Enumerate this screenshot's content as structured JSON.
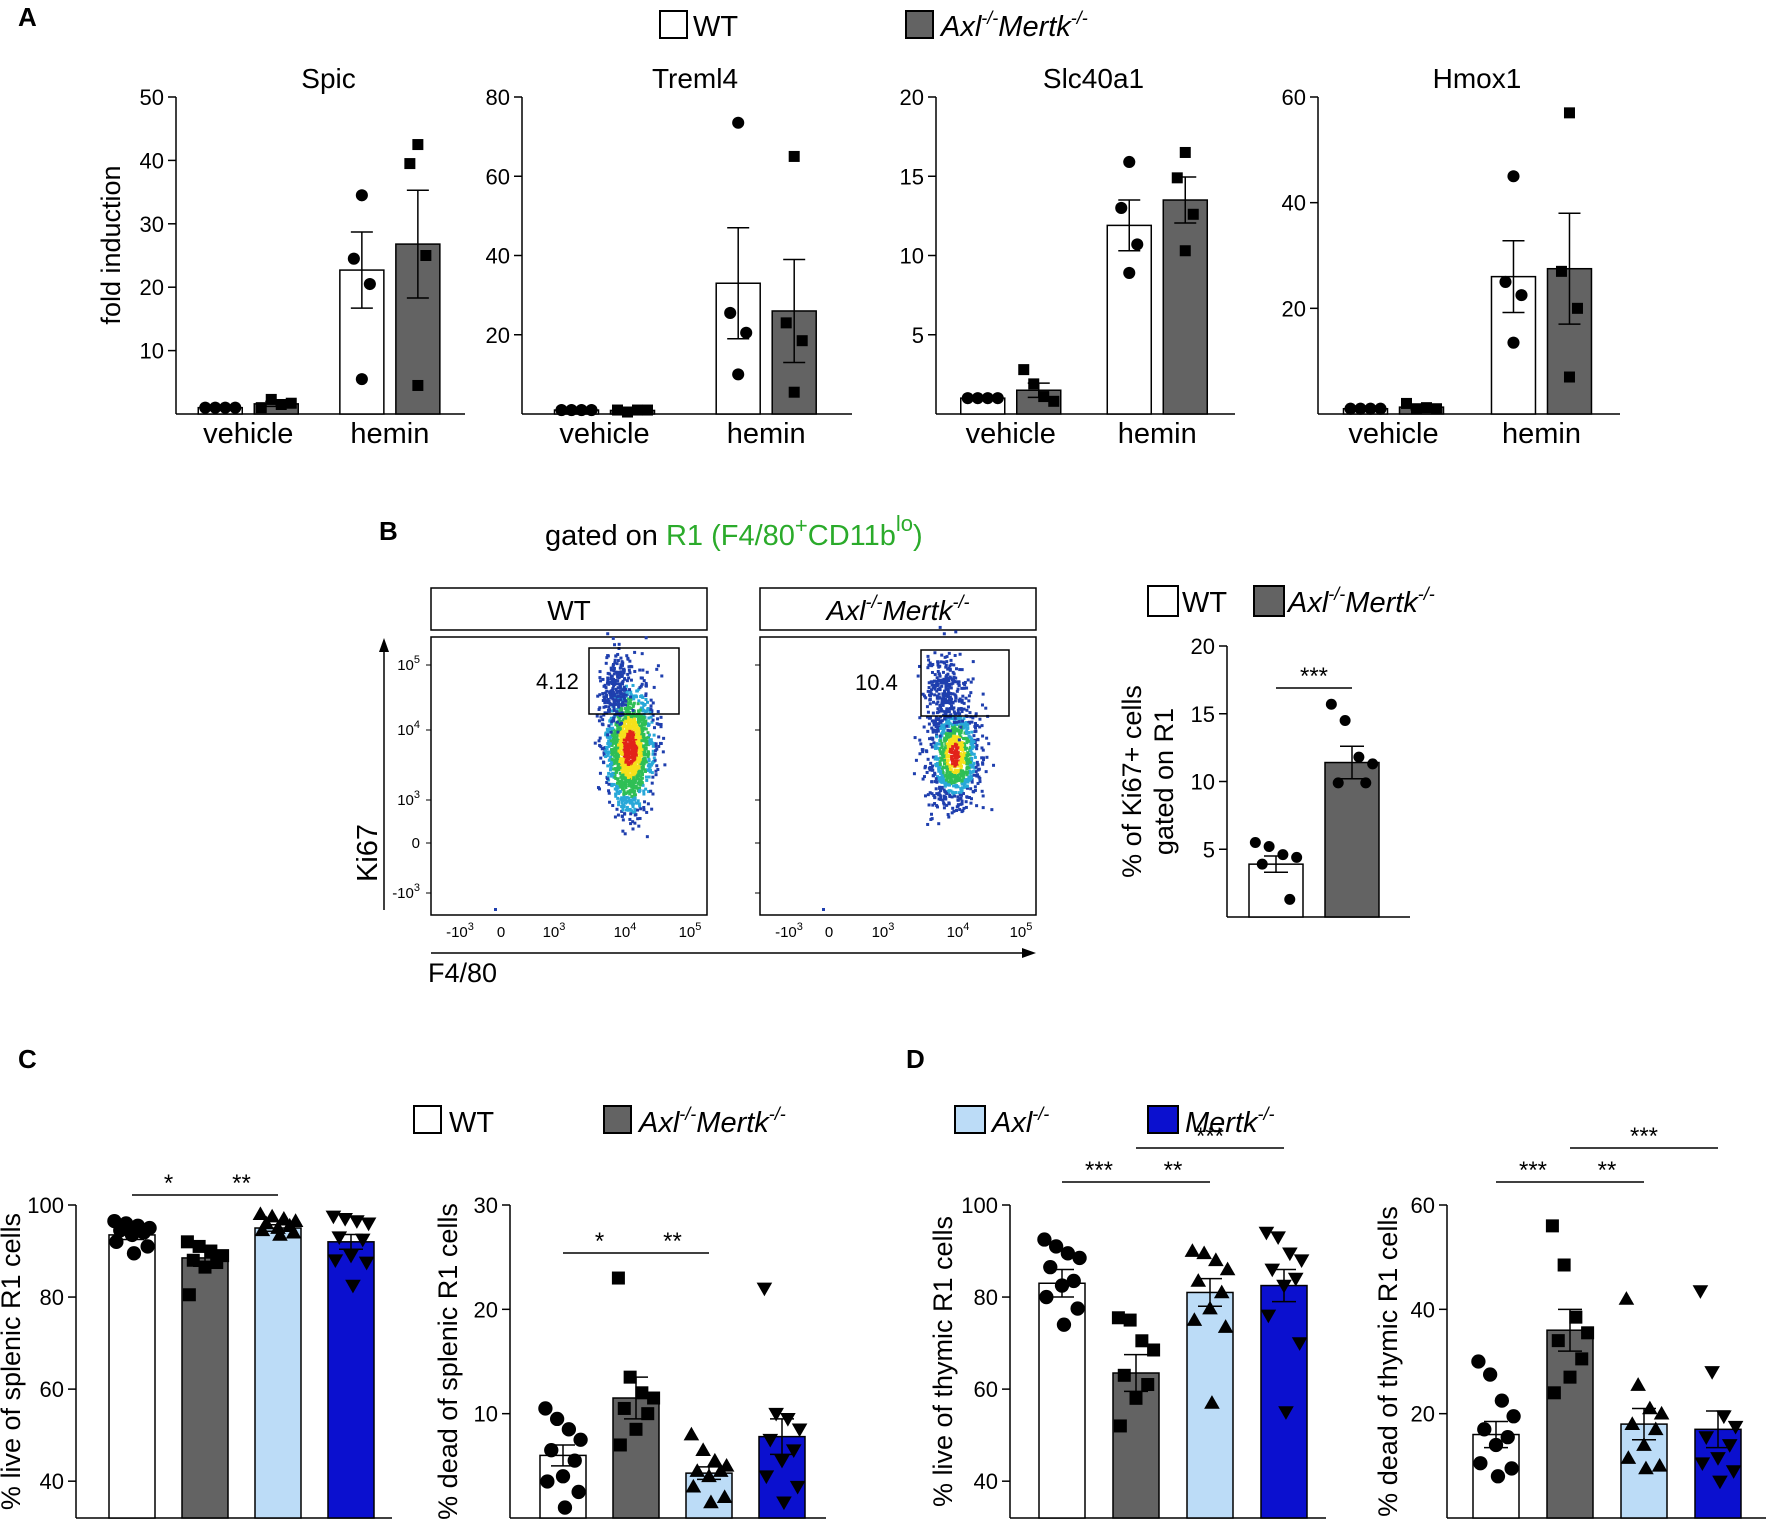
{
  "colors": {
    "wt": "#ffffff",
    "dko": "#636363",
    "axl": "#bcdcf7",
    "mertk": "#0b10cf",
    "gate_label": "#2bab2b",
    "axis": "#000000"
  },
  "panel_labels": {
    "a": "A",
    "b": "B",
    "c": "C",
    "d": "D"
  },
  "legend_a": {
    "wt": "WT",
    "dko_axl": "Axl",
    "dko_axl_sup": "-/-",
    "dko_mertk": "Mertk",
    "dko_mertk_sup": "-/-"
  },
  "legend_b": {
    "wt": "WT",
    "dko_axl": "Axl",
    "dko_axl_sup": "-/-",
    "dko_mertk": "Mertk",
    "dko_mertk_sup": "-/-"
  },
  "legend_cd": {
    "wt": "WT",
    "dko_axl": "Axl",
    "dko_axl_sup": "-/-",
    "dko_mertk": "Mertk",
    "dko_mertk_sup": "-/-",
    "axl": "Axl",
    "axl_sup": "-/-",
    "mertk": "Mertk",
    "mertk_sup": "-/-"
  },
  "panel_a_ylabel": "fold induction",
  "flow": {
    "gate_prefix": "gated on ",
    "gate_r1": "R1 (F4/80",
    "gate_plus": "+",
    "gate_cd": "CD11b",
    "gate_lo": "lo",
    "gate_close": ")",
    "plots": [
      {
        "title": "WT",
        "gate_pct": "4.12"
      },
      {
        "title_axl": "Axl",
        "title_axl_sup": "-/-",
        "title_mertk": "Mertk",
        "title_mertk_sup": "-/-",
        "gate_pct": "10.4"
      }
    ],
    "y_axis_label": "Ki67",
    "x_axis_label": "F4/80",
    "y_ticks": [
      {
        "base": "10",
        "exp": "5"
      },
      {
        "base": "10",
        "exp": "4"
      },
      {
        "base": "10",
        "exp": "3"
      },
      {
        "base": "0",
        "exp": ""
      },
      {
        "base": "-10",
        "exp": "3"
      }
    ],
    "x_ticks": [
      {
        "base": "-10",
        "exp": "3"
      },
      {
        "base": "0",
        "exp": ""
      },
      {
        "base": "10",
        "exp": "3"
      },
      {
        "base": "10",
        "exp": "4"
      },
      {
        "base": "10",
        "exp": "5"
      }
    ]
  },
  "chart_data": [
    {
      "id": "spic",
      "type": "bar",
      "title": "Spic",
      "ylabel": "fold induction",
      "categories": [
        "vehicle",
        "hemin"
      ],
      "ylim": [
        0,
        50
      ],
      "yticks": [
        10,
        20,
        30,
        40,
        50
      ],
      "series": [
        {
          "name": "WT",
          "values": [
            1,
            22.7
          ],
          "sem": [
            0.1,
            6.0
          ],
          "points": [
            [
              1,
              1,
              1,
              1
            ],
            [
              34.5,
              24.5,
              20.5,
              5.5
            ]
          ]
        },
        {
          "name": "Axl-/-Mertk-/-",
          "values": [
            1.6,
            26.8
          ],
          "sem": [
            0.4,
            8.5
          ],
          "points": [
            [
              1,
              2.3,
              1.5,
              1.7
            ],
            [
              42.5,
              39.5,
              25,
              4.5
            ]
          ]
        }
      ]
    },
    {
      "id": "treml4",
      "type": "bar",
      "title": "Treml4",
      "ylabel": "",
      "categories": [
        "vehicle",
        "hemin"
      ],
      "ylim": [
        0,
        80
      ],
      "yticks": [
        20,
        40,
        60,
        80
      ],
      "series": [
        {
          "name": "WT",
          "values": [
            1,
            33
          ],
          "sem": [
            0.1,
            14
          ],
          "points": [
            [
              1,
              1,
              1,
              1
            ],
            [
              73.5,
              25.5,
              20.5,
              10
            ]
          ]
        },
        {
          "name": "Axl-/-Mertk-/-",
          "values": [
            0.9,
            26
          ],
          "sem": [
            0.2,
            13
          ],
          "points": [
            [
              1,
              0.5,
              1,
              1
            ],
            [
              65,
              23,
              18.5,
              5.5
            ]
          ]
        }
      ]
    },
    {
      "id": "slc40a1",
      "type": "bar",
      "title": "Slc40a1",
      "ylabel": "",
      "categories": [
        "vehicle",
        "hemin"
      ],
      "ylim": [
        0,
        20
      ],
      "yticks": [
        5,
        10,
        15,
        20
      ],
      "series": [
        {
          "name": "WT",
          "values": [
            1,
            11.9
          ],
          "sem": [
            0.05,
            1.6
          ],
          "points": [
            [
              1,
              1,
              1,
              1
            ],
            [
              15.9,
              13,
              10.7,
              8.9
            ]
          ]
        },
        {
          "name": "Axl-/-Mertk-/-",
          "values": [
            1.5,
            13.5
          ],
          "sem": [
            0.45,
            1.45
          ],
          "points": [
            [
              2.8,
              1.9,
              1.1,
              0.8
            ],
            [
              16.5,
              14.9,
              12.6,
              10.3
            ]
          ]
        }
      ]
    },
    {
      "id": "hmox1",
      "type": "bar",
      "title": "Hmox1",
      "ylabel": "",
      "categories": [
        "vehicle",
        "hemin"
      ],
      "ylim": [
        0,
        60
      ],
      "yticks": [
        20,
        40,
        60
      ],
      "series": [
        {
          "name": "WT",
          "values": [
            1,
            26
          ],
          "sem": [
            0.1,
            6.8
          ],
          "points": [
            [
              1,
              1,
              1,
              1
            ],
            [
              45,
              25,
              22.5,
              13.5
            ]
          ]
        },
        {
          "name": "Axl-/-Mertk-/-",
          "values": [
            1.3,
            27.5
          ],
          "sem": [
            0.5,
            10.5
          ],
          "points": [
            [
              2,
              1,
              1.2,
              1
            ],
            [
              57,
              27,
              20,
              7
            ]
          ]
        }
      ]
    },
    {
      "id": "ki67",
      "type": "bar",
      "title": "",
      "ylabel": "% of Ki67+ cells gated on R1",
      "ylabel_lines": [
        "% of Ki67+ cells",
        "gated on R1"
      ],
      "categories": [
        "WT",
        "Axl-/-Mertk-/-"
      ],
      "ylim": [
        0,
        20
      ],
      "yticks": [
        5,
        10,
        15,
        20
      ],
      "values": [
        3.9,
        11.4
      ],
      "sem": [
        0.6,
        1.2
      ],
      "points": [
        [
          5.5,
          5.2,
          4.6,
          4.4,
          3.9,
          1.3
        ],
        [
          15.7,
          14.5,
          11.8,
          11.3,
          9.9,
          9.9
        ]
      ],
      "significance": [
        {
          "from": 0,
          "to": 1,
          "label": "***"
        }
      ]
    },
    {
      "id": "splenic_live",
      "type": "bar",
      "title": "",
      "ylabel": "% live of splenic R1 cells",
      "categories": [
        "WT",
        "Axl-/-Mertk-/-",
        "Axl-/-",
        "Mertk-/-"
      ],
      "ylim": [
        32,
        100
      ],
      "yticks": [
        40,
        60,
        80,
        100
      ],
      "values": [
        93.5,
        88.5,
        95,
        92
      ],
      "sem": [
        1,
        1.8,
        0.7,
        1.6
      ],
      "points": [
        [
          96.5,
          96,
          95.5,
          95,
          94.5,
          94,
          93.5,
          92,
          91,
          89.5
        ],
        [
          92,
          91,
          90,
          89,
          88,
          87.5,
          86.5,
          80.5
        ],
        [
          98,
          97.5,
          97,
          96.5,
          96,
          95.5,
          95,
          94.5,
          94,
          93.5
        ],
        [
          97.5,
          97,
          96.5,
          96,
          93,
          92.5,
          89,
          88,
          87.5,
          82.5
        ]
      ],
      "significance": [
        {
          "from": 0,
          "to": 1,
          "label": "*"
        },
        {
          "from": 1,
          "to": 2,
          "label": "**"
        }
      ]
    },
    {
      "id": "splenic_dead",
      "type": "bar",
      "title": "",
      "ylabel": "% dead of splenic R1 cells",
      "categories": [
        "WT",
        "Axl-/-Mertk-/-",
        "Axl-/-",
        "Mertk-/-"
      ],
      "ylim": [
        0,
        30
      ],
      "yticks": [
        10,
        20,
        30
      ],
      "values": [
        6,
        11.5,
        4.3,
        7.8
      ],
      "sem": [
        1,
        2,
        0.6,
        1.7
      ],
      "points": [
        [
          10.5,
          9.5,
          8.5,
          7.5,
          6.5,
          5.5,
          4,
          3.5,
          2.5,
          1
        ],
        [
          23,
          13.5,
          12,
          11.5,
          10.5,
          10,
          8.5,
          7
        ],
        [
          8,
          6.5,
          5.5,
          5,
          4.5,
          4.5,
          4,
          3,
          2,
          1.5
        ],
        [
          22,
          10,
          9.5,
          8.5,
          7.5,
          6.5,
          5.5,
          4,
          3,
          1.5
        ]
      ],
      "significance": [
        {
          "from": 0,
          "to": 1,
          "label": "*"
        },
        {
          "from": 1,
          "to": 2,
          "label": "**"
        }
      ]
    },
    {
      "id": "thymic_live",
      "type": "bar",
      "title": "",
      "ylabel": "% live of thymic R1 cells",
      "categories": [
        "WT",
        "Axl-/-Mertk-/-",
        "Axl-/-",
        "Mertk-/-"
      ],
      "ylim": [
        32,
        100
      ],
      "yticks": [
        40,
        60,
        80,
        100
      ],
      "values": [
        83,
        63.5,
        81,
        82.5
      ],
      "sem": [
        3,
        4,
        3,
        3.5
      ],
      "points": [
        [
          92.5,
          91,
          89.5,
          88.5,
          86.5,
          83.5,
          82.5,
          80,
          77.5,
          74
        ],
        [
          75.5,
          75,
          70.5,
          68.5,
          63,
          61,
          58,
          52
        ],
        [
          90,
          89.5,
          88,
          86,
          83.5,
          81,
          77.5,
          75,
          73.5,
          57
        ],
        [
          94,
          93,
          89.5,
          88,
          86,
          84,
          82.5,
          76,
          70,
          55
        ]
      ],
      "significance": [
        {
          "from": 0,
          "to": 1,
          "label": "***"
        },
        {
          "from": 1,
          "to": 2,
          "label": "**"
        },
        {
          "from": 1,
          "to": 3,
          "label": "***"
        }
      ]
    },
    {
      "id": "thymic_dead",
      "type": "bar",
      "title": "",
      "ylabel": "% dead of thymic R1 cells",
      "categories": [
        "WT",
        "Axl-/-Mertk-/-",
        "Axl-/-",
        "Mertk-/-"
      ],
      "ylim": [
        0,
        60
      ],
      "yticks": [
        20,
        40,
        60
      ],
      "values": [
        16,
        36,
        18,
        17
      ],
      "sem": [
        2.5,
        4,
        3,
        3.5
      ],
      "points": [
        [
          30,
          27.5,
          22.5,
          19.5,
          17,
          15.5,
          14,
          10.5,
          9.5,
          8
        ],
        [
          56,
          48.5,
          38.5,
          35.5,
          34,
          30.5,
          27,
          24
        ],
        [
          42,
          25.5,
          21,
          20,
          18,
          17,
          14,
          11.5,
          10,
          9.5
        ],
        [
          43.5,
          28,
          19.5,
          17.5,
          15.5,
          14,
          11.5,
          10.5,
          9,
          7
        ]
      ],
      "significance": [
        {
          "from": 0,
          "to": 1,
          "label": "***"
        },
        {
          "from": 1,
          "to": 2,
          "label": "**"
        },
        {
          "from": 1,
          "to": 3,
          "label": "***"
        }
      ]
    }
  ]
}
